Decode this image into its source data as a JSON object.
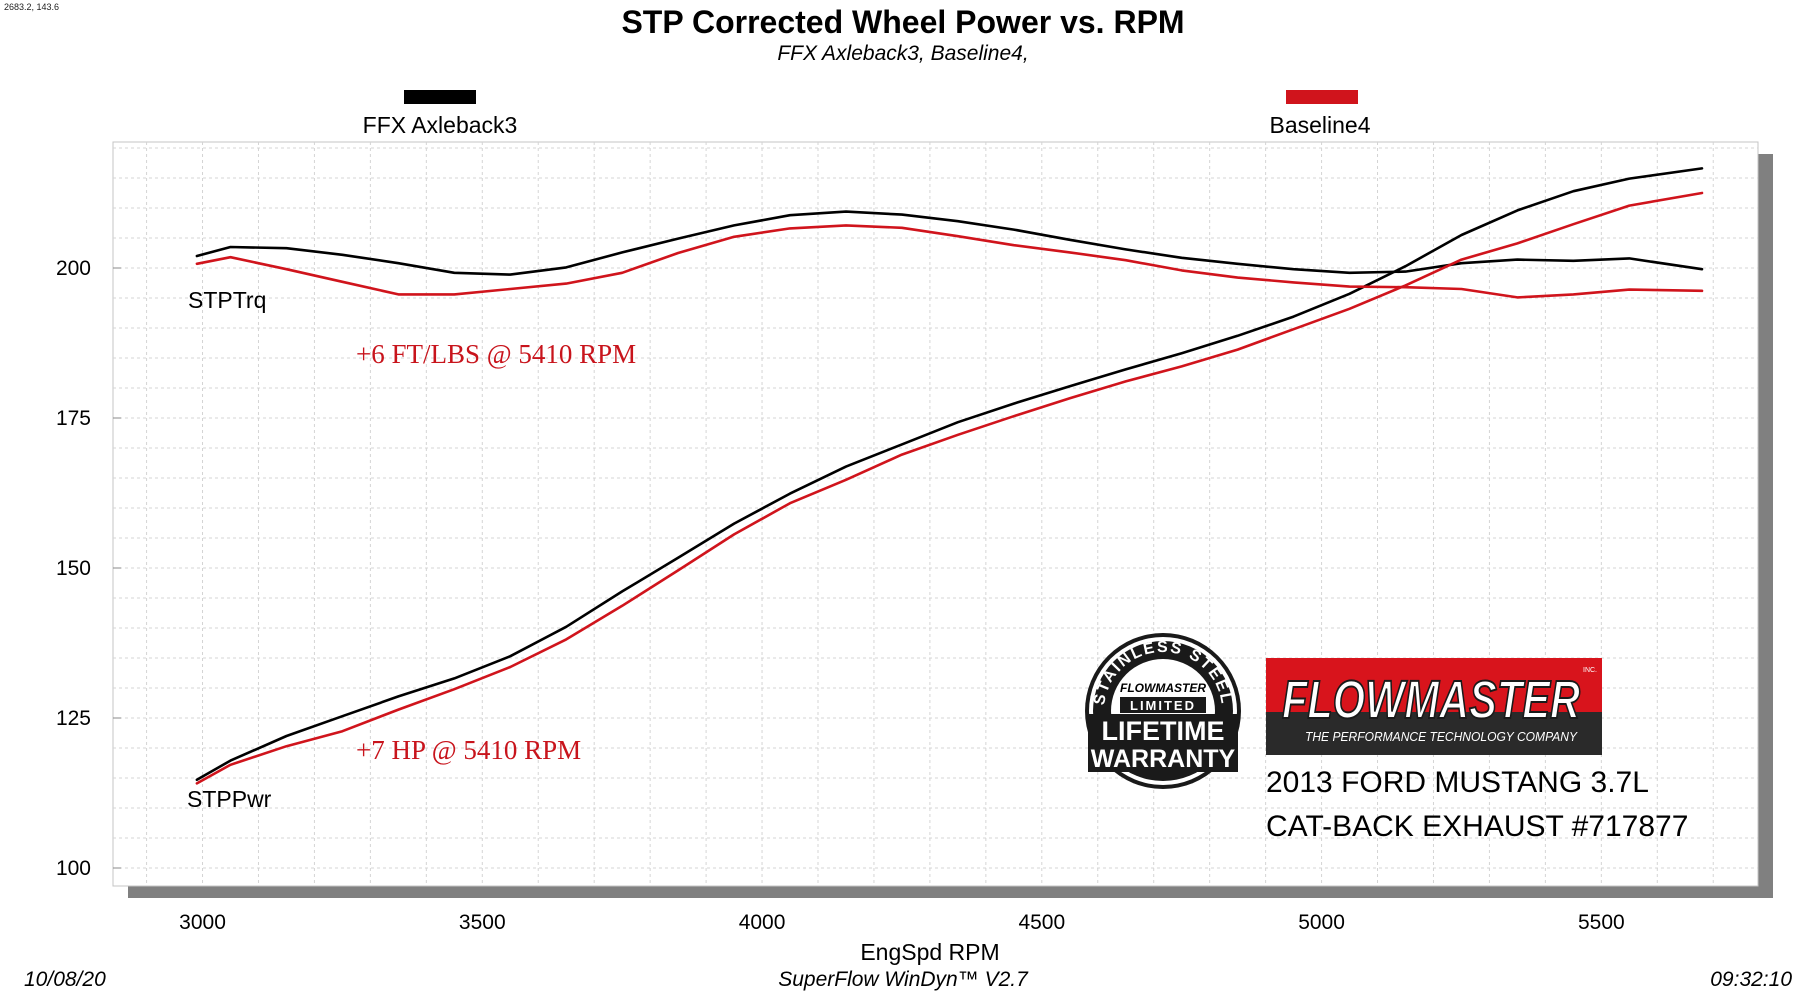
{
  "header": {
    "readout": "2683.2, 143.6",
    "title": "STP Corrected Wheel Power vs. RPM",
    "subtitle": "FFX Axleback3, Baseline4,"
  },
  "footer": {
    "date": "10/08/20",
    "software": "SuperFlow WinDyn™ V2.7",
    "time": "09:32:10"
  },
  "colors": {
    "ffx": "#000000",
    "baseline": "#d0141c",
    "annotation": "#c8141c",
    "shadow": "#808080",
    "grid": "#d4d4d4",
    "logo_red": "#d8141c"
  },
  "logos": {
    "flowmaster_name": "FLOWMASTER",
    "flowmaster_inc": "INC.",
    "flowmaster_tagline": "THE PERFORMANCE TECHNOLOGY COMPANY",
    "warranty_arc_text": "STAINLESS STEEL",
    "warranty_brand": "FLOWMASTER",
    "warranty_limited": "LIMITED",
    "warranty_line1": "LIFETIME",
    "warranty_line2": "WARRANTY"
  },
  "vehicle": {
    "line1": "2013 FORD MUSTANG 3.7L",
    "line2": "CAT-BACK EXHAUST #717877"
  },
  "chart_data": {
    "type": "line",
    "title": "STP Corrected Wheel Power vs. RPM",
    "subtitle": "FFX Axleback3, Baseline4,",
    "xlabel": "EngSpd  RPM",
    "ylabel": "",
    "xlim": [
      2840,
      5780
    ],
    "ylim": [
      97,
      221
    ],
    "xticks": [
      3000,
      3500,
      4000,
      4500,
      5000,
      5500
    ],
    "yticks": [
      100,
      125,
      150,
      175,
      200
    ],
    "grid": true,
    "legend_placement": "top",
    "legend": [
      "FFX Axleback3",
      "Baseline4"
    ],
    "labels": {
      "torque": "STPTrq",
      "power": "STPPwr"
    },
    "annotations": [
      {
        "text": "+6 FT/LBS @ 5410 RPM",
        "x": 3270,
        "y": 184
      },
      {
        "text": "+7 HP @ 5410 RPM",
        "x": 3270,
        "y": 117
      }
    ],
    "series": [
      {
        "name": "FFX Axleback3",
        "color": "#000000",
        "torque": {
          "x": [
            2990,
            3050,
            3150,
            3250,
            3350,
            3450,
            3550,
            3650,
            3750,
            3850,
            3950,
            4050,
            4150,
            4250,
            4350,
            4450,
            4550,
            4650,
            4750,
            4850,
            4950,
            5050,
            5150,
            5250,
            5350,
            5450,
            5550,
            5680
          ],
          "y": [
            202,
            203.5,
            203.3,
            202.2,
            200.8,
            199.2,
            198.9,
            200.1,
            202.6,
            204.9,
            207.1,
            208.8,
            209.4,
            208.9,
            207.8,
            206.4,
            204.7,
            203.1,
            201.7,
            200.7,
            199.8,
            199.2,
            199.4,
            200.8,
            201.4,
            201.2,
            201.6,
            199.8
          ]
        },
        "power": {
          "x": [
            2990,
            3050,
            3150,
            3250,
            3350,
            3450,
            3550,
            3650,
            3750,
            3850,
            3950,
            4050,
            4150,
            4250,
            4350,
            4450,
            4550,
            4650,
            4750,
            4850,
            4950,
            5050,
            5150,
            5250,
            5350,
            5450,
            5550,
            5680
          ],
          "y": [
            114.7,
            117.9,
            122,
            125.3,
            128.6,
            131.6,
            135.3,
            140.2,
            146.1,
            151.7,
            157.4,
            162.4,
            166.9,
            170.6,
            174.3,
            177.4,
            180.3,
            183.1,
            185.8,
            188.7,
            191.9,
            195.7,
            200.3,
            205.5,
            209.6,
            212.8,
            214.9,
            216.6
          ]
        }
      },
      {
        "name": "Baseline4",
        "color": "#d0141c",
        "torque": {
          "x": [
            2990,
            3050,
            3150,
            3250,
            3350,
            3450,
            3550,
            3650,
            3750,
            3850,
            3950,
            4050,
            4150,
            4250,
            4350,
            4450,
            4550,
            4650,
            4750,
            4850,
            4950,
            5050,
            5150,
            5250,
            5350,
            5450,
            5550,
            5680
          ],
          "y": [
            200.7,
            201.8,
            199.8,
            197.7,
            195.6,
            195.6,
            196.5,
            197.4,
            199.2,
            202.5,
            205.2,
            206.6,
            207.1,
            206.7,
            205.3,
            203.8,
            202.6,
            201.3,
            199.6,
            198.4,
            197.6,
            196.9,
            196.8,
            196.5,
            195.1,
            195.6,
            196.4,
            196.2
          ]
        },
        "power": {
          "x": [
            2990,
            3050,
            3150,
            3250,
            3350,
            3450,
            3550,
            3650,
            3750,
            3850,
            3950,
            4050,
            4150,
            4250,
            4350,
            4450,
            4550,
            4650,
            4750,
            4850,
            4950,
            5050,
            5150,
            5250,
            5350,
            5450,
            5550,
            5680
          ],
          "y": [
            114.1,
            117.2,
            120.3,
            122.8,
            126.4,
            129.8,
            133.5,
            138.1,
            143.7,
            149.6,
            155.6,
            160.8,
            164.7,
            168.9,
            172.2,
            175.3,
            178.3,
            181.1,
            183.6,
            186.4,
            189.8,
            193.2,
            197.1,
            201.4,
            204.1,
            207.3,
            210.4,
            212.5
          ]
        }
      }
    ]
  }
}
